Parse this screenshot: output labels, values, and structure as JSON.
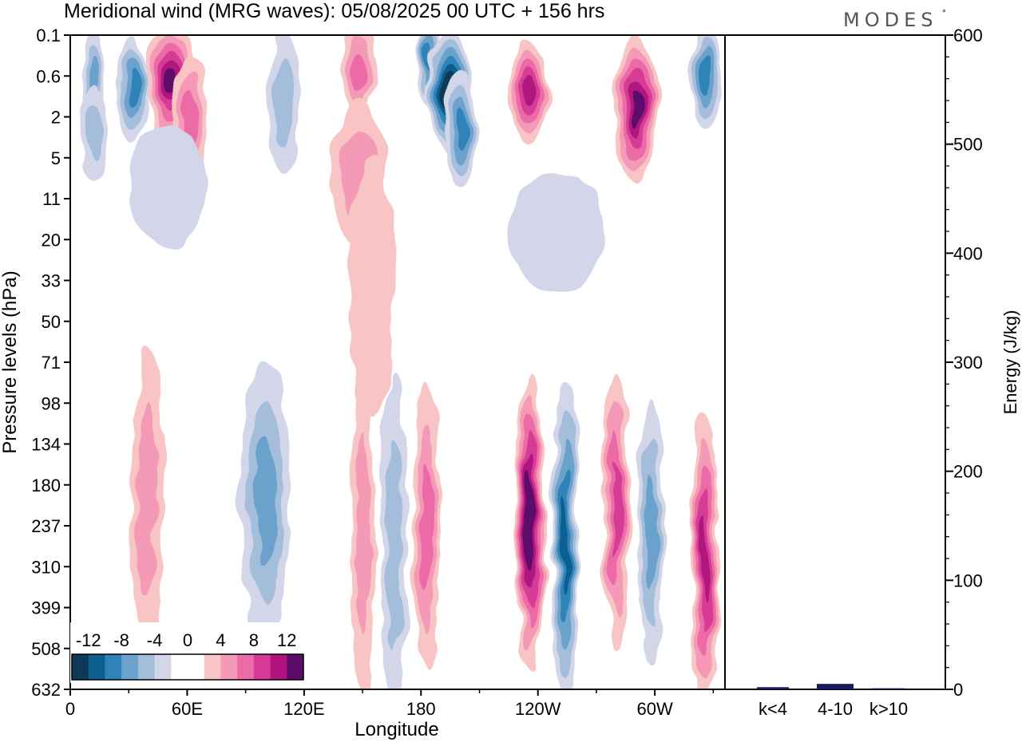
{
  "title": "Meridional wind (MRG waves):  05/08/2025  00 UTC  + 156 hrs",
  "logo": "MODES",
  "logo_mark": "°",
  "chart_data": [
    {
      "type": "heatmap",
      "title": "Meridional wind (MRG waves):  05/08/2025  00 UTC  + 156 hrs",
      "xlabel": "Longitude",
      "ylabel": "Pressure levels (hPa)",
      "x_ticks": [
        "0",
        "60E",
        "120E",
        "180",
        "120W",
        "60W"
      ],
      "x_tick_values": [
        0,
        60,
        120,
        180,
        240,
        300
      ],
      "xlim": [
        0,
        336
      ],
      "y_ticks": [
        "0.1",
        "0.6",
        "2",
        "5",
        "11",
        "20",
        "33",
        "50",
        "71",
        "98",
        "134",
        "180",
        "237",
        "310",
        "399",
        "508",
        "632"
      ],
      "colorbar": {
        "labels": [
          "-12",
          "-8",
          "-4",
          "0",
          "4",
          "8",
          "12"
        ],
        "colors": [
          "#0a3a57",
          "#0d5f8f",
          "#2f83b9",
          "#6ba2cc",
          "#a4bddb",
          "#d2d6e8",
          "#ffffff",
          "#ffffff",
          "#f8c4c4",
          "#f59ab6",
          "#ec6aa6",
          "#d63a96",
          "#b0127e",
          "#5c0a6a"
        ],
        "placement": "bottom-left"
      },
      "features": [
        {
          "lon": 32,
          "lev": 0.9,
          "value": -10,
          "rx": 8,
          "ry": 1.3
        },
        {
          "lon": 12,
          "lev": 0.6,
          "value": -8,
          "rx": 6,
          "ry": 1.0
        },
        {
          "lon": 12,
          "lev": 2.8,
          "value": -6,
          "rx": 7,
          "ry": 1.2
        },
        {
          "lon": 52,
          "lev": 0.7,
          "value": 14,
          "rx": 13,
          "ry": 1.4
        },
        {
          "lon": 62,
          "lev": 2.0,
          "value": 8,
          "rx": 9,
          "ry": 1.5
        },
        {
          "lon": 110,
          "lev": 1.3,
          "value": -5,
          "rx": 9,
          "ry": 1.8
        },
        {
          "lon": 148,
          "lev": 0.5,
          "value": 8,
          "rx": 8,
          "ry": 1.2
        },
        {
          "lon": 185,
          "lev": 0.3,
          "value": -9,
          "rx": 5,
          "ry": 1.1
        },
        {
          "lon": 195,
          "lev": 1.0,
          "value": -15,
          "rx": 11,
          "ry": 1.5
        },
        {
          "lon": 200,
          "lev": 2.6,
          "value": -10,
          "rx": 8,
          "ry": 1.4
        },
        {
          "lon": 235,
          "lev": 0.9,
          "value": 11,
          "rx": 10,
          "ry": 1.3
        },
        {
          "lon": 290,
          "lev": 1.6,
          "value": 13,
          "rx": 11,
          "ry": 1.8
        },
        {
          "lon": 326,
          "lev": 0.6,
          "value": -10,
          "rx": 8,
          "ry": 1.3
        },
        {
          "lon": 148,
          "lev": 7.0,
          "value": 6,
          "rx": 14,
          "ry": 1.8
        },
        {
          "lon": 50,
          "lev": 8.5,
          "value": -4,
          "rx": 20,
          "ry": 1.5
        },
        {
          "lon": 155,
          "lev": 35,
          "value": 4,
          "rx": 12,
          "ry": 3.2
        },
        {
          "lon": 250,
          "lev": 18,
          "value": -4,
          "rx": 25,
          "ry": 1.5
        },
        {
          "lon": 40,
          "lev": 200,
          "value": 5,
          "rx": 8,
          "ry": 3.8
        },
        {
          "lon": 100,
          "lev": 200,
          "value": -7,
          "rx": 13,
          "ry": 3.5
        },
        {
          "lon": 150,
          "lev": 250,
          "value": 6,
          "rx": 6,
          "ry": 4.0
        },
        {
          "lon": 166,
          "lev": 270,
          "value": -6,
          "rx": 7,
          "ry": 4.2
        },
        {
          "lon": 183,
          "lev": 240,
          "value": 7,
          "rx": 7,
          "ry": 3.5
        },
        {
          "lon": 236,
          "lev": 230,
          "value": 15,
          "rx": 8,
          "ry": 3.6
        },
        {
          "lon": 254,
          "lev": 270,
          "value": -12,
          "rx": 7,
          "ry": 4.0
        },
        {
          "lon": 280,
          "lev": 210,
          "value": 10,
          "rx": 7,
          "ry": 3.4
        },
        {
          "lon": 298,
          "lev": 250,
          "value": -8,
          "rx": 7,
          "ry": 3.2
        },
        {
          "lon": 326,
          "lev": 300,
          "value": 11,
          "rx": 7,
          "ry": 3.6
        }
      ]
    },
    {
      "type": "bar",
      "categories": [
        "k<4",
        "4-10",
        "k>10"
      ],
      "values": [
        2,
        5,
        1
      ],
      "ylabel": "Energy (J/kg)",
      "ylim": [
        0,
        600
      ],
      "y_ticks": [
        "0",
        "100",
        "200",
        "300",
        "400",
        "500",
        "600"
      ],
      "bar_color": "#1a1a5e"
    }
  ]
}
